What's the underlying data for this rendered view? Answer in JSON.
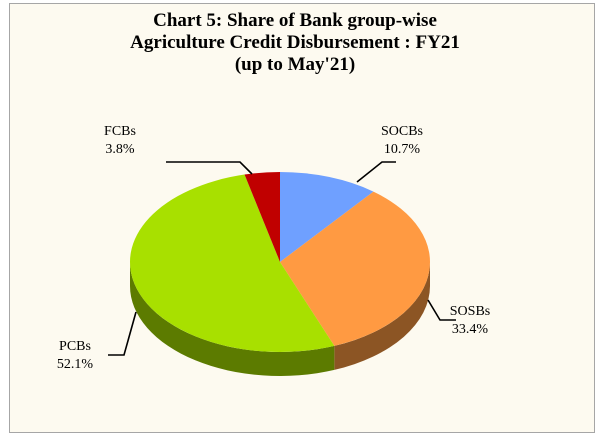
{
  "chart_data": {
    "type": "pie",
    "title": "Chart 5: Share of Bank group-wise Agriculture Credit Disbursement : FY21 (up to May'21)",
    "categories": [
      "SOCBs",
      "SOSBs",
      "PCBs",
      "FCBs"
    ],
    "values": [
      10.7,
      33.4,
      52.1,
      3.8
    ],
    "value_labels": [
      "10.7%",
      "33.4%",
      "52.1%",
      "3.8%"
    ],
    "colors": [
      "#6fa0ff",
      "#ff9a42",
      "#a8e000",
      "#c00000"
    ]
  }
}
